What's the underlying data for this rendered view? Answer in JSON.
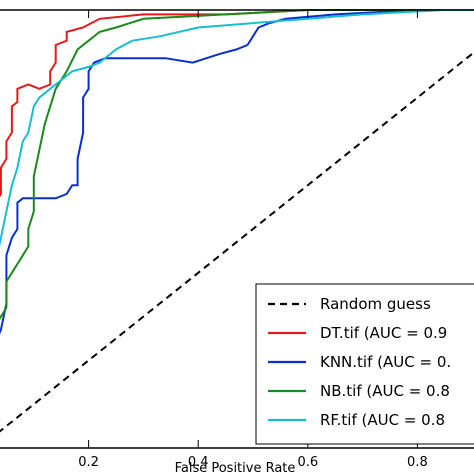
{
  "chart_data": {
    "type": "line",
    "xlabel": "False Positive Rate",
    "ylabel": "",
    "xlim": [
      0.0,
      1.0
    ],
    "ylim": [
      0.0,
      1.0
    ],
    "grid": false,
    "legend_position": "bottom-right",
    "x_ticks": [
      {
        "value": 0.2,
        "label": "0.2"
      },
      {
        "value": 0.4,
        "label": "0.4"
      },
      {
        "value": 0.6,
        "label": "0.6"
      },
      {
        "value": 0.8,
        "label": "0.8"
      }
    ],
    "series": [
      {
        "name": "Random guess",
        "color": "#000000",
        "style": "dashed",
        "points": [
          [
            0.0,
            0.0
          ],
          [
            1.0,
            1.0
          ]
        ]
      },
      {
        "name": "DT.tif (AUC = 0.9",
        "color": "#e31a1c",
        "style": "solid",
        "points": [
          [
            0.0,
            0.38
          ],
          [
            0.02,
            0.4
          ],
          [
            0.02,
            0.48
          ],
          [
            0.03,
            0.5
          ],
          [
            0.03,
            0.56
          ],
          [
            0.04,
            0.58
          ],
          [
            0.04,
            0.64
          ],
          [
            0.05,
            0.66
          ],
          [
            0.05,
            0.7
          ],
          [
            0.06,
            0.72
          ],
          [
            0.06,
            0.78
          ],
          [
            0.07,
            0.79
          ],
          [
            0.07,
            0.82
          ],
          [
            0.09,
            0.83
          ],
          [
            0.11,
            0.82
          ],
          [
            0.13,
            0.83
          ],
          [
            0.13,
            0.86
          ],
          [
            0.14,
            0.88
          ],
          [
            0.14,
            0.92
          ],
          [
            0.16,
            0.93
          ],
          [
            0.16,
            0.95
          ],
          [
            0.19,
            0.96
          ],
          [
            0.22,
            0.98
          ],
          [
            0.3,
            0.99
          ],
          [
            0.45,
            0.99
          ],
          [
            0.6,
            1.0
          ],
          [
            1.0,
            1.0
          ]
        ]
      },
      {
        "name": "KNN.tif (AUC = 0.",
        "color": "#0a2fd1",
        "style": "solid",
        "points": [
          [
            0.0,
            0.19
          ],
          [
            0.01,
            0.21
          ],
          [
            0.02,
            0.22
          ],
          [
            0.03,
            0.24
          ],
          [
            0.04,
            0.27
          ],
          [
            0.05,
            0.33
          ],
          [
            0.05,
            0.44
          ],
          [
            0.06,
            0.48
          ],
          [
            0.07,
            0.5
          ],
          [
            0.07,
            0.56
          ],
          [
            0.08,
            0.57
          ],
          [
            0.14,
            0.57
          ],
          [
            0.16,
            0.58
          ],
          [
            0.17,
            0.6
          ],
          [
            0.18,
            0.6
          ],
          [
            0.18,
            0.66
          ],
          [
            0.19,
            0.72
          ],
          [
            0.19,
            0.8
          ],
          [
            0.2,
            0.82
          ],
          [
            0.2,
            0.86
          ],
          [
            0.21,
            0.88
          ],
          [
            0.23,
            0.89
          ],
          [
            0.28,
            0.89
          ],
          [
            0.34,
            0.89
          ],
          [
            0.39,
            0.88
          ],
          [
            0.44,
            0.9
          ],
          [
            0.47,
            0.91
          ],
          [
            0.49,
            0.92
          ],
          [
            0.5,
            0.94
          ],
          [
            0.51,
            0.96
          ],
          [
            0.53,
            0.97
          ],
          [
            0.56,
            0.98
          ],
          [
            0.65,
            0.99
          ],
          [
            0.8,
            1.0
          ],
          [
            1.0,
            1.0
          ]
        ]
      },
      {
        "name": "NB.tif (AUC = 0.8",
        "color": "#1a8a1a",
        "style": "solid",
        "points": [
          [
            0.0,
            0.2
          ],
          [
            0.01,
            0.22
          ],
          [
            0.02,
            0.25
          ],
          [
            0.03,
            0.28
          ],
          [
            0.05,
            0.32
          ],
          [
            0.05,
            0.38
          ],
          [
            0.06,
            0.4
          ],
          [
            0.07,
            0.42
          ],
          [
            0.08,
            0.44
          ],
          [
            0.09,
            0.46
          ],
          [
            0.09,
            0.5
          ],
          [
            0.1,
            0.54
          ],
          [
            0.1,
            0.62
          ],
          [
            0.11,
            0.68
          ],
          [
            0.12,
            0.74
          ],
          [
            0.13,
            0.78
          ],
          [
            0.14,
            0.82
          ],
          [
            0.16,
            0.86
          ],
          [
            0.18,
            0.91
          ],
          [
            0.2,
            0.93
          ],
          [
            0.22,
            0.95
          ],
          [
            0.25,
            0.96
          ],
          [
            0.3,
            0.98
          ],
          [
            0.45,
            0.99
          ],
          [
            0.6,
            1.0
          ],
          [
            1.0,
            1.0
          ]
        ]
      },
      {
        "name": "RF.tif (AUC = 0.8",
        "color": "#17becf",
        "style": "solid",
        "points": [
          [
            0.0,
            0.3
          ],
          [
            0.01,
            0.33
          ],
          [
            0.02,
            0.36
          ],
          [
            0.03,
            0.42
          ],
          [
            0.04,
            0.48
          ],
          [
            0.05,
            0.54
          ],
          [
            0.06,
            0.6
          ],
          [
            0.07,
            0.64
          ],
          [
            0.08,
            0.7
          ],
          [
            0.09,
            0.72
          ],
          [
            0.1,
            0.78
          ],
          [
            0.11,
            0.8
          ],
          [
            0.13,
            0.82
          ],
          [
            0.15,
            0.84
          ],
          [
            0.17,
            0.86
          ],
          [
            0.2,
            0.87
          ],
          [
            0.22,
            0.88
          ],
          [
            0.25,
            0.91
          ],
          [
            0.28,
            0.93
          ],
          [
            0.33,
            0.94
          ],
          [
            0.4,
            0.96
          ],
          [
            0.5,
            0.97
          ],
          [
            0.6,
            0.98
          ],
          [
            0.7,
            0.99
          ],
          [
            0.85,
            1.0
          ],
          [
            1.0,
            1.0
          ]
        ]
      }
    ]
  }
}
